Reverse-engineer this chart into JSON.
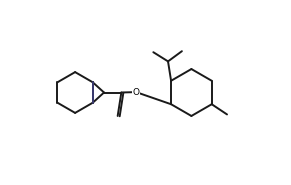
{
  "background": "#ffffff",
  "line_color": "#1a1a1a",
  "line_width": 1.4,
  "bridge_color": "#3a3a70",
  "fig_width": 2.91,
  "fig_height": 1.85,
  "dpi": 100,
  "xlim": [
    0.0,
    1.0
  ],
  "ylim": [
    0.05,
    0.95
  ]
}
